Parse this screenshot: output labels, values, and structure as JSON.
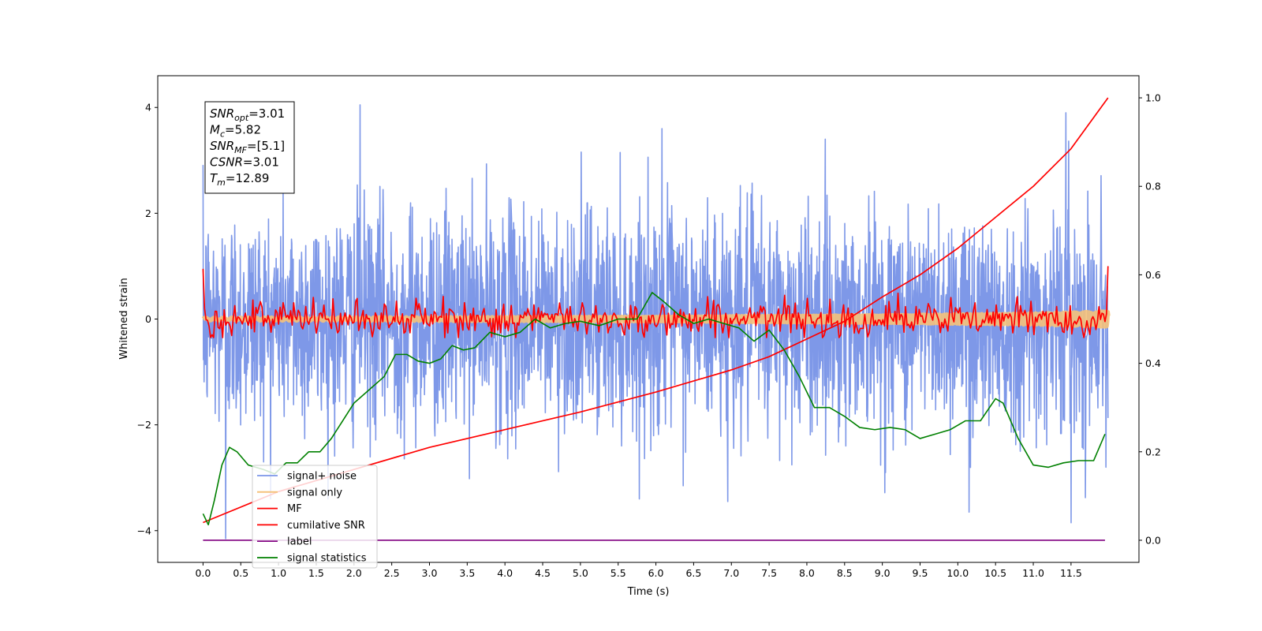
{
  "chart_data": {
    "type": "line",
    "title": "",
    "xlabel": "Time (s)",
    "ylabel": "Whitened strain",
    "y2label": "",
    "xlim": [
      -0.6,
      12.4
    ],
    "ylim": [
      -4.6,
      4.6
    ],
    "y2lim": [
      -0.05,
      1.05
    ],
    "x_ticks": [
      "0.0",
      "0.5",
      "1.0",
      "1.5",
      "2.0",
      "2.5",
      "3.0",
      "3.5",
      "4.0",
      "4.5",
      "5.0",
      "5.5",
      "6.0",
      "6.5",
      "7.0",
      "7.5",
      "8.0",
      "8.5",
      "9.0",
      "9.5",
      "10.0",
      "10.5",
      "11.0",
      "11.5"
    ],
    "y_ticks": [
      "-4",
      "-2",
      "0",
      "2",
      "4"
    ],
    "y2_ticks": [
      "0.0",
      "0.2",
      "0.4",
      "0.6",
      "0.8",
      "1.0"
    ],
    "legend_position": "lower-left",
    "grid": false,
    "info_box": {
      "lines": [
        {
          "sym": "SNR",
          "sub": "opt",
          "value": "=3.01"
        },
        {
          "sym": "M",
          "sub": "c",
          "value": "=5.82"
        },
        {
          "sym": "SNR",
          "sub": "MF",
          "value": "=[5.1]"
        },
        {
          "sym": "CSNR",
          "sub": "",
          "value": "=3.01"
        },
        {
          "sym": "T",
          "sub": "m",
          "value": "=12.89"
        }
      ]
    },
    "series": [
      {
        "name": "signal+ noise",
        "color": "#7b96e8",
        "axis": "left",
        "kind": "noise",
        "x_range": [
          0,
          11.99
        ],
        "amplitude_sd": 1.0,
        "spikes": [
          [
            0.3,
            -4.15
          ],
          [
            2.08,
            4.05
          ],
          [
            6.95,
            -3.45
          ],
          [
            10.15,
            -3.65
          ],
          [
            11.5,
            -3.85
          ],
          [
            11.43,
            3.9
          ],
          [
            6.08,
            3.6
          ]
        ]
      },
      {
        "name": "signal only",
        "color": "#f5c27a",
        "axis": "left",
        "kind": "chirp",
        "x_range": [
          0,
          11.99
        ],
        "envelope": [
          [
            0,
            0.02
          ],
          [
            6,
            0.04
          ],
          [
            9,
            0.07
          ],
          [
            11,
            0.1
          ],
          [
            11.99,
            0.14
          ]
        ]
      },
      {
        "name": "MF",
        "color": "#ff0000",
        "axis": "left",
        "kind": "mf",
        "x_range": [
          0,
          11.99
        ],
        "start": 0.95,
        "end": 1.0,
        "amplitude_sd": 0.17
      },
      {
        "name": "cumilative SNR",
        "color": "#ff0000",
        "axis": "right",
        "kind": "line",
        "x": [
          0.0,
          1.0,
          2.0,
          3.0,
          4.0,
          5.0,
          6.0,
          7.0,
          7.5,
          8.0,
          8.5,
          9.0,
          9.5,
          10.0,
          10.5,
          11.0,
          11.5,
          11.99
        ],
        "y": [
          0.04,
          0.11,
          0.16,
          0.21,
          0.25,
          0.29,
          0.335,
          0.385,
          0.415,
          0.455,
          0.495,
          0.55,
          0.6,
          0.66,
          0.73,
          0.8,
          0.885,
          1.0
        ]
      },
      {
        "name": "label",
        "color": "#800080",
        "axis": "right",
        "kind": "line",
        "x": [
          0.0,
          11.95
        ],
        "y": [
          0.0,
          0.0
        ]
      },
      {
        "name": "signal statistics",
        "color": "#008000",
        "axis": "right",
        "kind": "line",
        "x": [
          0.0,
          0.07,
          0.15,
          0.25,
          0.35,
          0.45,
          0.6,
          0.8,
          0.95,
          1.1,
          1.25,
          1.4,
          1.55,
          1.7,
          1.85,
          2.0,
          2.2,
          2.4,
          2.55,
          2.7,
          2.85,
          3.0,
          3.15,
          3.3,
          3.45,
          3.6,
          3.8,
          4.0,
          4.2,
          4.4,
          4.6,
          4.8,
          5.0,
          5.25,
          5.5,
          5.75,
          5.95,
          6.1,
          6.3,
          6.5,
          6.7,
          6.9,
          7.1,
          7.3,
          7.5,
          7.7,
          7.9,
          8.1,
          8.3,
          8.5,
          8.7,
          8.9,
          9.1,
          9.3,
          9.5,
          9.7,
          9.9,
          10.1,
          10.3,
          10.5,
          10.6,
          10.8,
          11.0,
          11.2,
          11.4,
          11.6,
          11.8,
          11.95
        ],
        "y": [
          0.06,
          0.035,
          0.09,
          0.17,
          0.21,
          0.2,
          0.17,
          0.16,
          0.15,
          0.175,
          0.175,
          0.2,
          0.2,
          0.23,
          0.27,
          0.31,
          0.34,
          0.37,
          0.42,
          0.42,
          0.405,
          0.4,
          0.41,
          0.44,
          0.43,
          0.435,
          0.47,
          0.46,
          0.47,
          0.5,
          0.48,
          0.49,
          0.495,
          0.485,
          0.5,
          0.5,
          0.56,
          0.54,
          0.51,
          0.49,
          0.5,
          0.49,
          0.48,
          0.45,
          0.475,
          0.43,
          0.37,
          0.3,
          0.3,
          0.28,
          0.255,
          0.25,
          0.255,
          0.25,
          0.23,
          0.24,
          0.25,
          0.27,
          0.27,
          0.32,
          0.31,
          0.23,
          0.17,
          0.165,
          0.175,
          0.18,
          0.18,
          0.24
        ]
      }
    ]
  }
}
